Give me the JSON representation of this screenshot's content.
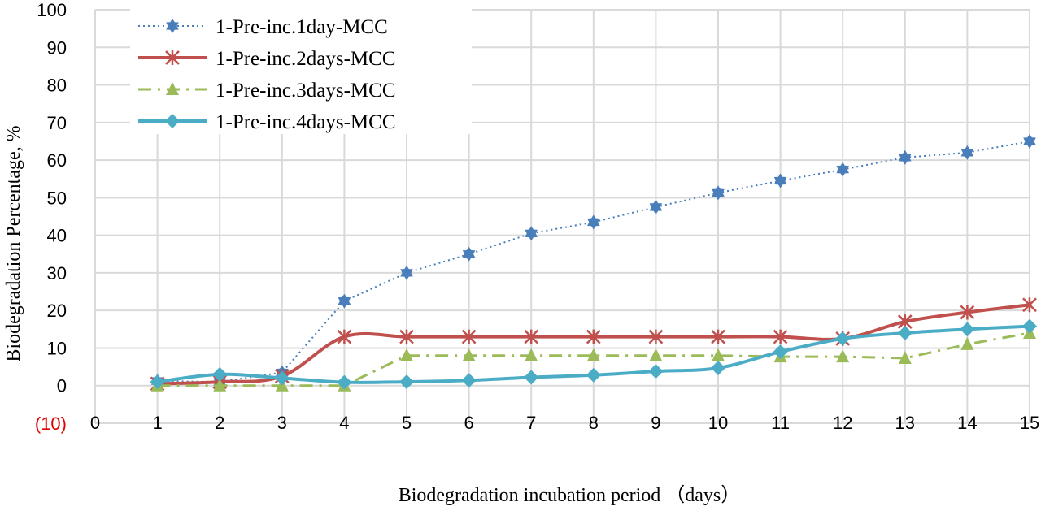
{
  "chart_data": {
    "type": "line",
    "title": "",
    "xlabel": "Biodegradation incubation period （days）",
    "ylabel": "Biodegradation Percentage, %",
    "xlim": [
      0,
      15
    ],
    "ylim": [
      -10,
      100
    ],
    "x_ticks": [
      "0",
      "1",
      "2",
      "3",
      "4",
      "5",
      "6",
      "7",
      "8",
      "9",
      "10",
      "11",
      "12",
      "13",
      "14",
      "15"
    ],
    "y_ticks": [
      "(10)",
      "0",
      "10",
      "20",
      "30",
      "40",
      "50",
      "60",
      "70",
      "80",
      "90",
      "100"
    ],
    "negative_tick_color": "#e00000",
    "grid": true,
    "legend_position": "top-left",
    "x": [
      1,
      2,
      3,
      4,
      5,
      6,
      7,
      8,
      9,
      10,
      11,
      12,
      13,
      14,
      15
    ],
    "series": [
      {
        "name": "1-Pre-inc.1day-MCC",
        "color": "#4a7ebb",
        "style": "dotted",
        "marker": "star",
        "smooth": false,
        "values": [
          1.2,
          1.0,
          3.5,
          22.5,
          30,
          35,
          40.5,
          43.5,
          47.5,
          51.3,
          54.5,
          57.5,
          60.7,
          62,
          65
        ]
      },
      {
        "name": "1-Pre-inc.2days-MCC",
        "color": "#c0504d",
        "style": "solid",
        "marker": "asterisk",
        "smooth": true,
        "values": [
          0.5,
          1.0,
          2.5,
          13,
          13,
          13,
          13,
          13,
          13,
          13,
          13,
          12.5,
          17,
          19.5,
          21.5
        ]
      },
      {
        "name": "1-Pre-inc.3days-MCC",
        "color": "#9bbb59",
        "style": "dashdot",
        "marker": "triangle",
        "smooth": false,
        "values": [
          0,
          0,
          0,
          0,
          8,
          8,
          8,
          8,
          8,
          8,
          7.7,
          7.7,
          7.3,
          11,
          14
        ]
      },
      {
        "name": "1-Pre-inc.4days-MCC",
        "color": "#4bacc6",
        "style": "solid",
        "marker": "diamond",
        "smooth": true,
        "values": [
          1.0,
          3.0,
          2.0,
          0.9,
          1.0,
          1.4,
          2.2,
          2.8,
          3.8,
          4.7,
          9,
          12.5,
          14,
          15,
          15.8
        ]
      }
    ]
  }
}
